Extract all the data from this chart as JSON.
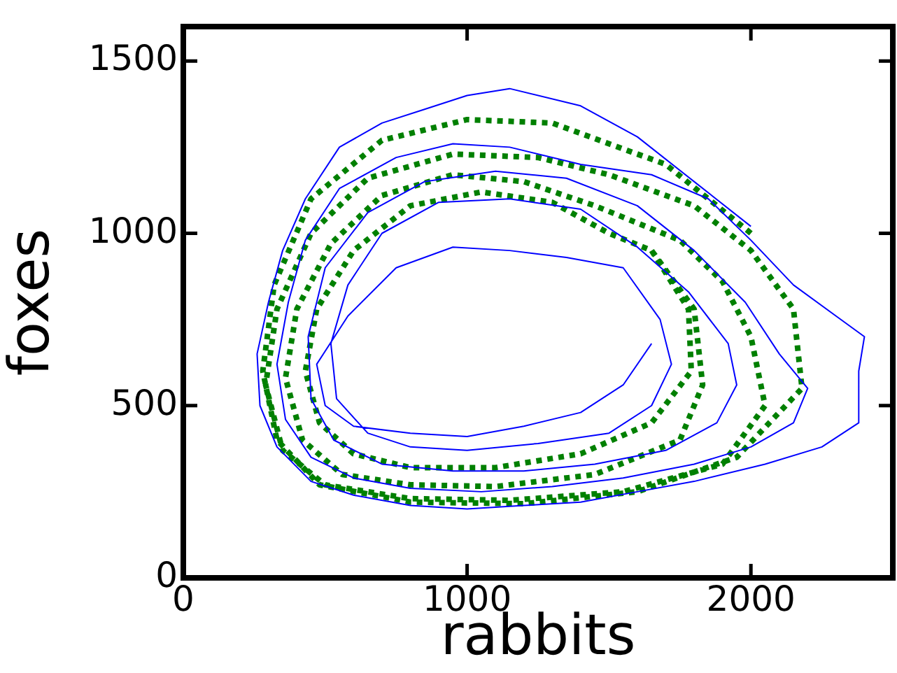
{
  "chart_data": {
    "type": "line",
    "xlabel": "rabbits",
    "ylabel": "foxes",
    "xlim": [
      0,
      2500
    ],
    "xticks": [
      0,
      1000,
      2000
    ],
    "ylim": [
      0,
      1600
    ],
    "yticks": [
      0,
      500,
      1000,
      1500
    ],
    "grid": false,
    "legend": false,
    "marker": "none",
    "series": [
      {
        "color": "#0000ff",
        "line_style": "solid",
        "x": [
          2000,
          1800,
          1600,
          1400,
          1150,
          1000,
          850,
          700,
          550,
          430,
          350,
          300,
          260,
          270,
          330,
          450,
          600,
          800,
          1000,
          1200,
          1400,
          1600,
          1800,
          2050,
          2250,
          2380,
          2380,
          2400,
          2300,
          2150,
          2000,
          1850,
          1650,
          1400,
          1150,
          950,
          750,
          550,
          430,
          370,
          330,
          360,
          450,
          600,
          800,
          1050,
          1300,
          1550,
          1800,
          2000,
          2150,
          2200,
          2100,
          1980,
          1800,
          1600,
          1350,
          1100,
          850,
          650,
          500,
          440,
          450,
          530,
          700,
          950,
          1200,
          1450,
          1700,
          1880,
          1950,
          1920,
          1780,
          1600,
          1400,
          1150,
          900,
          700,
          580,
          520,
          540,
          650,
          800,
          1000,
          1250,
          1500,
          1650,
          1720,
          1680,
          1550,
          1350,
          1150,
          950,
          750,
          580,
          470,
          500,
          600,
          800,
          1000,
          1200,
          1400,
          1550,
          1650
        ],
        "values": [
          1020,
          1150,
          1280,
          1370,
          1420,
          1400,
          1360,
          1320,
          1250,
          1100,
          950,
          800,
          650,
          500,
          380,
          280,
          240,
          210,
          200,
          210,
          220,
          250,
          280,
          330,
          380,
          450,
          600,
          700,
          760,
          850,
          980,
          1100,
          1170,
          1200,
          1250,
          1260,
          1220,
          1130,
          980,
          800,
          620,
          460,
          350,
          290,
          260,
          250,
          265,
          290,
          330,
          380,
          450,
          550,
          650,
          800,
          950,
          1080,
          1160,
          1180,
          1150,
          1060,
          900,
          700,
          520,
          400,
          330,
          310,
          310,
          330,
          370,
          450,
          560,
          680,
          830,
          960,
          1070,
          1100,
          1090,
          1000,
          850,
          680,
          520,
          420,
          380,
          370,
          390,
          420,
          500,
          620,
          750,
          900,
          930,
          950,
          960,
          900,
          760,
          620,
          500,
          440,
          420,
          410,
          440,
          480,
          560,
          680
        ]
      },
      {
        "color": "#008000",
        "line_style": "dotted",
        "x": [
          2000,
          1700,
          1300,
          1000,
          700,
          450,
          320,
          280,
          330,
          480,
          800,
          1200,
          1600,
          1950,
          2180,
          2150,
          2000,
          1800,
          1500,
          1250,
          950,
          650,
          450,
          330,
          290,
          350,
          500,
          800,
          1150,
          1550,
          1900,
          2050,
          2000,
          1900,
          1750,
          1450,
          1200,
          950,
          700,
          520,
          400,
          360,
          420,
          560,
          800,
          1100,
          1450,
          1750,
          1830,
          1800,
          1650,
          1500,
          1300,
          1050,
          800,
          600,
          470,
          430,
          480,
          600,
          800,
          1100,
          1400,
          1650,
          1790,
          1780,
          1650
        ],
        "values": [
          1000,
          1200,
          1320,
          1330,
          1270,
          1100,
          850,
          600,
          400,
          270,
          220,
          215,
          250,
          350,
          550,
          780,
          950,
          1080,
          1170,
          1220,
          1230,
          1160,
          1000,
          780,
          560,
          370,
          270,
          230,
          225,
          250,
          330,
          500,
          700,
          860,
          980,
          1080,
          1150,
          1170,
          1110,
          970,
          780,
          580,
          400,
          300,
          270,
          265,
          300,
          400,
          560,
          780,
          950,
          1000,
          1090,
          1120,
          1080,
          950,
          780,
          600,
          450,
          360,
          320,
          320,
          360,
          450,
          600,
          780,
          950
        ]
      }
    ]
  }
}
